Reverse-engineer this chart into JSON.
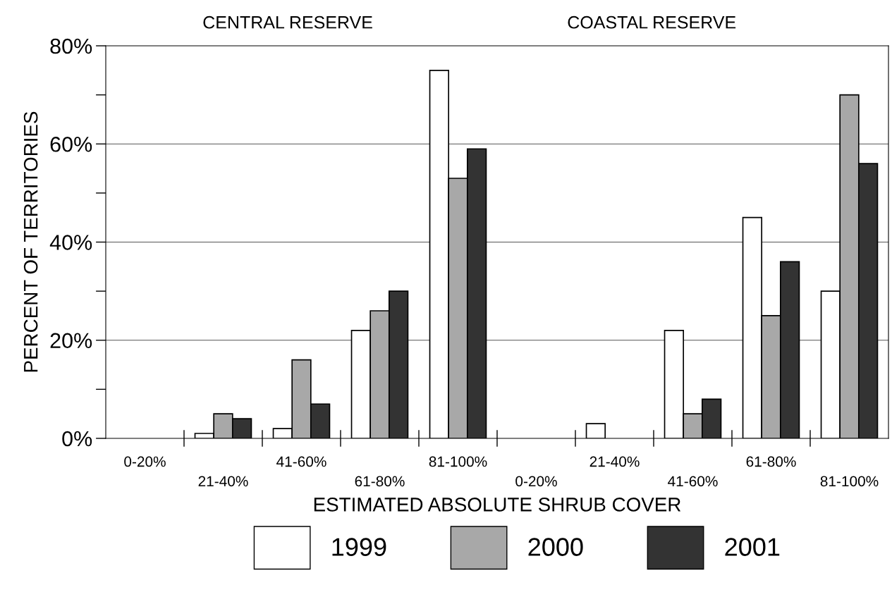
{
  "chart_data": {
    "type": "bar",
    "categories": [
      "0-20%",
      "21-40%",
      "41-60%",
      "61-80%",
      "81-100%",
      "0-20%",
      "21-40%",
      "41-60%",
      "61-80%",
      "81-100%"
    ],
    "series": [
      {
        "name": "1999",
        "color": "#ffffff",
        "values": [
          0,
          1,
          2,
          22,
          75,
          0,
          3,
          22,
          45,
          30
        ]
      },
      {
        "name": "2000",
        "color": "#a8a8a8",
        "values": [
          0,
          5,
          16,
          26,
          53,
          0,
          0,
          5,
          25,
          70
        ]
      },
      {
        "name": "2001",
        "color": "#333333",
        "values": [
          0,
          4,
          7,
          30,
          59,
          0,
          0,
          8,
          36,
          56
        ]
      }
    ],
    "xlabel": "ESTIMATED ABSOLUTE SHRUB COVER",
    "ylabel": "PERCENT OF TERRITORIES",
    "annotations": [
      "CENTRAL RESERVE",
      "COASTAL RESERVE"
    ],
    "ylim": [
      0,
      80
    ],
    "yticks": [
      {
        "value": 0,
        "label": "0%"
      },
      {
        "value": 10,
        "label": null
      },
      {
        "value": 20,
        "label": "20%"
      },
      {
        "value": 30,
        "label": null
      },
      {
        "value": 40,
        "label": "40%"
      },
      {
        "value": 50,
        "label": null
      },
      {
        "value": 60,
        "label": "60%"
      },
      {
        "value": 70,
        "label": null
      },
      {
        "value": 80,
        "label": "80%"
      }
    ],
    "grid": "y",
    "legend": "bottom"
  }
}
